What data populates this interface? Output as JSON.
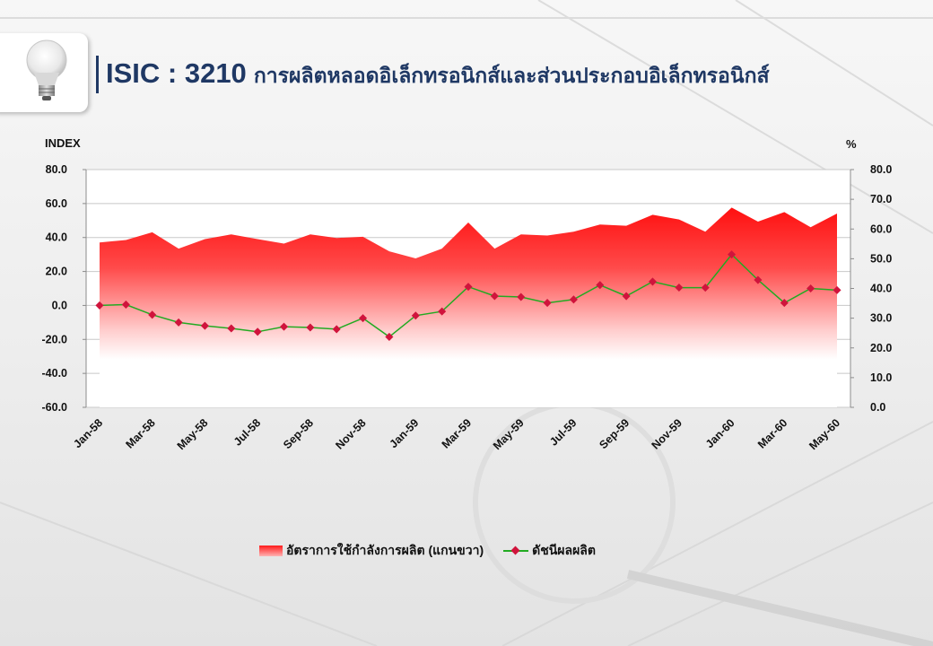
{
  "header": {
    "code": "ISIC : 3210",
    "name": "การผลิตหลอดอิเล็กทรอนิกส์และส่วนประกอบอิเล็กทรอนิกส์"
  },
  "chart_data": {
    "type": "line",
    "left_axis_title": "INDEX",
    "right_axis_title": "%",
    "left_axis_ticks": [
      "80.0",
      "60.0",
      "40.0",
      "20.0",
      "0.0",
      "-20.0",
      "-40.0",
      "-60.0"
    ],
    "right_axis_ticks": [
      "80.0",
      "70.0",
      "60.0",
      "50.0",
      "40.0",
      "30.0",
      "20.0",
      "10.0",
      "0.0"
    ],
    "ylim_left": [
      -60,
      80
    ],
    "ylim_right": [
      0,
      80
    ],
    "categories": [
      "Jan-58",
      "Feb-58",
      "Mar-58",
      "Apr-58",
      "May-58",
      "Jun-58",
      "Jul-58",
      "Aug-58",
      "Sep-58",
      "Oct-58",
      "Nov-58",
      "Dec-58",
      "Jan-59",
      "Feb-59",
      "Mar-59",
      "Apr-59",
      "May-59",
      "Jun-59",
      "Jul-59",
      "Aug-59",
      "Sep-59",
      "Oct-59",
      "Nov-59",
      "Dec-59",
      "Jan-60",
      "Feb-60",
      "Mar-60",
      "Apr-60",
      "May-60"
    ],
    "tick_labels": [
      "Jan-58",
      "Mar-58",
      "May-58",
      "Jul-58",
      "Sep-58",
      "Nov-58",
      "Jan-59",
      "Mar-59",
      "May-59",
      "Jul-59",
      "Sep-59",
      "Nov-59",
      "Jan-60",
      "Mar-60",
      "May-60"
    ],
    "series": [
      {
        "name": "อัตราการใช้กำลังการผลิต (แกนขวา)",
        "axis": "right",
        "kind": "area",
        "color": "#ff1a1a",
        "values": [
          55.5,
          56.3,
          58.9,
          53.4,
          56.6,
          58.2,
          56.6,
          55.1,
          58.2,
          57.0,
          57.4,
          52.5,
          50.1,
          53.4,
          62.2,
          53.4,
          58.2,
          57.8,
          59.1,
          61.5,
          61.1,
          64.8,
          63.2,
          59.1,
          67.2,
          62.5,
          65.7,
          60.6,
          65.2
        ]
      },
      {
        "name": "ดัชนีผลผลิต",
        "axis": "left",
        "kind": "line",
        "color": "#22aa22",
        "marker_color": "#d0143c",
        "values": [
          0.0,
          0.5,
          -5.5,
          -10.0,
          -12.0,
          -13.5,
          -15.5,
          -12.5,
          -13.0,
          -14.0,
          -7.5,
          -18.5,
          -6.0,
          -3.5,
          11.0,
          5.5,
          5.0,
          1.5,
          3.5,
          12.0,
          5.5,
          14.0,
          10.5,
          10.5,
          30.0,
          15.0,
          1.5,
          10.0,
          9.0
        ]
      }
    ],
    "grid": "horizontal",
    "legend_position": "bottom"
  }
}
